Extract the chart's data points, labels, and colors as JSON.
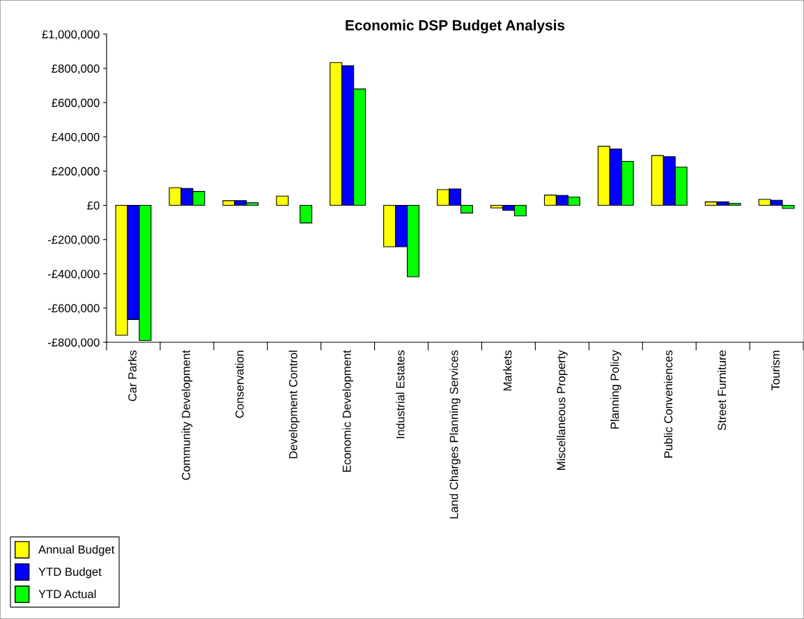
{
  "chart_data": {
    "type": "bar",
    "title": "Economic DSP Budget Analysis",
    "categories": [
      "Car Parks",
      "Community Development",
      "Conservation",
      "Development Control",
      "Economic Development",
      "Industrial Estates",
      "Land Charges Planning Services",
      "Markets",
      "Miscellaneous Property",
      "Planning Policy",
      "Public Conveniences",
      "Street Furniture",
      "Tourism"
    ],
    "series": [
      {
        "name": "Annual Budget",
        "color": "#ffff00",
        "values": [
          -759000,
          103000,
          27000,
          54000,
          834000,
          -242000,
          92000,
          -15000,
          60000,
          345000,
          291000,
          20000,
          35000
        ]
      },
      {
        "name": "YTD Budget",
        "color": "#0000ff",
        "values": [
          -667000,
          99000,
          27000,
          null,
          815000,
          -242000,
          96000,
          -29000,
          58000,
          329000,
          284000,
          20000,
          30000
        ]
      },
      {
        "name": "YTD Actual",
        "color": "#00ff00",
        "values": [
          -790000,
          81000,
          15000,
          -103000,
          680000,
          -417000,
          -45000,
          -62000,
          48000,
          257000,
          223000,
          11000,
          -18000
        ]
      }
    ],
    "ylim": [
      -800000,
      1000000
    ],
    "yticks": [
      {
        "value": -800000,
        "label": "-£800,000"
      },
      {
        "value": -600000,
        "label": "-£600,000"
      },
      {
        "value": -400000,
        "label": "-£400,000"
      },
      {
        "value": -200000,
        "label": "-£200,000"
      },
      {
        "value": 0,
        "label": "£0"
      },
      {
        "value": 200000,
        "label": "£200,000"
      },
      {
        "value": 400000,
        "label": "£400,000"
      },
      {
        "value": 600000,
        "label": "£600,000"
      },
      {
        "value": 800000,
        "label": "£800,000"
      },
      {
        "value": 1000000,
        "label": "£1,000,000"
      }
    ],
    "grid": false,
    "legend": "bottom left"
  }
}
